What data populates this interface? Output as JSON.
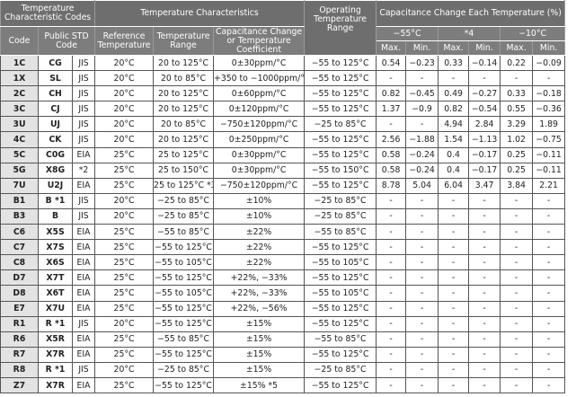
{
  "header": {
    "group_codes": "Temperature Characteristic Codes",
    "group_temp": "Temperature Characteristics",
    "operating": "Operating Temperature Range",
    "group_cap": "Capacitance Change Each Temperature (%)",
    "code": "Code",
    "public_std": "Public STD Code",
    "reference": "Reference Temperature",
    "range": "Temperature Range",
    "coefficient": "Capacitance Change or Temperature Coefficient",
    "t1": "−55°C",
    "t2": "*4",
    "t3": "−10°C",
    "max": "Max.",
    "min": "Min."
  },
  "rows": [
    [
      "1C",
      "CG",
      "JIS",
      "20°C",
      "20 to 125°C",
      "0±30ppm/°C",
      "−55 to 125°C",
      "0.54",
      "−0.23",
      "0.33",
      "−0.14",
      "0.22",
      "−0.09"
    ],
    [
      "1X",
      "SL",
      "JIS",
      "20°C",
      "20 to 85°C",
      "+350 to −1000ppm/°C",
      "−55 to 125°C",
      "-",
      "-",
      "-",
      "-",
      "-",
      "-"
    ],
    [
      "2C",
      "CH",
      "JIS",
      "20°C",
      "20 to 125°C",
      "0±60ppm/°C",
      "−55 to 125°C",
      "0.82",
      "−0.45",
      "0.49",
      "−0.27",
      "0.33",
      "−0.18"
    ],
    [
      "3C",
      "CJ",
      "JIS",
      "20°C",
      "20 to 125°C",
      "0±120ppm/°C",
      "−55 to 125°C",
      "1.37",
      "−0.9",
      "0.82",
      "−0.54",
      "0.55",
      "−0.36"
    ],
    [
      "3U",
      "UJ",
      "JIS",
      "20°C",
      "20 to 85°C",
      "−750±120ppm/°C",
      "−25 to 85°C",
      "-",
      "-",
      "4.94",
      "2.84",
      "3.29",
      "1.89"
    ],
    [
      "4C",
      "CK",
      "JIS",
      "20°C",
      "20 to 125°C",
      "0±250ppm/°C",
      "−55 to 125°C",
      "2.56",
      "−1.88",
      "1.54",
      "−1.13",
      "1.02",
      "−0.75"
    ],
    [
      "5C",
      "C0G",
      "EIA",
      "25°C",
      "25 to 125°C",
      "0±30ppm/°C",
      "−55 to 125°C",
      "0.58",
      "−0.24",
      "0.4",
      "−0.17",
      "0.25",
      "−0.11"
    ],
    [
      "5G",
      "X8G",
      "*2",
      "25°C",
      "25 to 150°C",
      "0±30ppm/°C",
      "−55 to 150°C",
      "0.58",
      "−0.24",
      "0.4",
      "−0.17",
      "0.25",
      "−0.11"
    ],
    [
      "7U",
      "U2J",
      "EIA",
      "25°C",
      "25 to 125°C *3",
      "−750±120ppm/°C",
      "−55 to 125°C",
      "8.78",
      "5.04",
      "6.04",
      "3.47",
      "3.84",
      "2.21"
    ],
    [
      "B1",
      "B *1",
      "JIS",
      "20°C",
      "−25 to 85°C",
      "±10%",
      "−25 to 85°C",
      "-",
      "-",
      "-",
      "-",
      "-",
      "-"
    ],
    [
      "B3",
      "B",
      "JIS",
      "20°C",
      "−25 to 85°C",
      "±10%",
      "−25 to 85°C",
      "-",
      "-",
      "-",
      "-",
      "-",
      "-"
    ],
    [
      "C6",
      "X5S",
      "EIA",
      "25°C",
      "−55 to 85°C",
      "±22%",
      "−55 to 85°C",
      "-",
      "-",
      "-",
      "-",
      "-",
      "-"
    ],
    [
      "C7",
      "X7S",
      "EIA",
      "25°C",
      "−55 to 125°C",
      "±22%",
      "−55 to 125°C",
      "-",
      "-",
      "-",
      "-",
      "-",
      "-"
    ],
    [
      "C8",
      "X6S",
      "EIA",
      "25°C",
      "−55 to 105°C",
      "±22%",
      "−55 to 105°C",
      "-",
      "-",
      "-",
      "-",
      "-",
      "-"
    ],
    [
      "D7",
      "X7T",
      "EIA",
      "25°C",
      "−55 to 125°C",
      "+22%, −33%",
      "−55 to 125°C",
      "-",
      "-",
      "-",
      "-",
      "-",
      "-"
    ],
    [
      "D8",
      "X6T",
      "EIA",
      "25°C",
      "−55 to 105°C",
      "+22%, −33%",
      "−55 to 105°C",
      "-",
      "-",
      "-",
      "-",
      "-",
      "-"
    ],
    [
      "E7",
      "X7U",
      "EIA",
      "25°C",
      "−55 to 125°C",
      "+22%, −56%",
      "−55 to 125°C",
      "-",
      "-",
      "-",
      "-",
      "-",
      "-"
    ],
    [
      "R1",
      "R *1",
      "JIS",
      "20°C",
      "−55 to 125°C",
      "±15%",
      "−55 to 125°C",
      "-",
      "-",
      "-",
      "-",
      "-",
      "-"
    ],
    [
      "R6",
      "X5R",
      "EIA",
      "25°C",
      "−55 to 85°C",
      "±15%",
      "−55 to 85°C",
      "-",
      "-",
      "-",
      "-",
      "-",
      "-"
    ],
    [
      "R7",
      "X7R",
      "EIA",
      "25°C",
      "−55 to 125°C",
      "±15%",
      "−55 to 125°C",
      "-",
      "-",
      "-",
      "-",
      "-",
      "-"
    ],
    [
      "R8",
      "R *1",
      "JIS",
      "20°C",
      "−25 to 85°C",
      "±15%",
      "−25 to 85°C",
      "-",
      "-",
      "-",
      "-",
      "-",
      "-"
    ],
    [
      "Z7",
      "X7R",
      "EIA",
      "25°C",
      "−55 to 125°C",
      "±15% *5",
      "−55 to 125°C",
      "-",
      "-",
      "-",
      "-",
      "-",
      "-"
    ]
  ]
}
